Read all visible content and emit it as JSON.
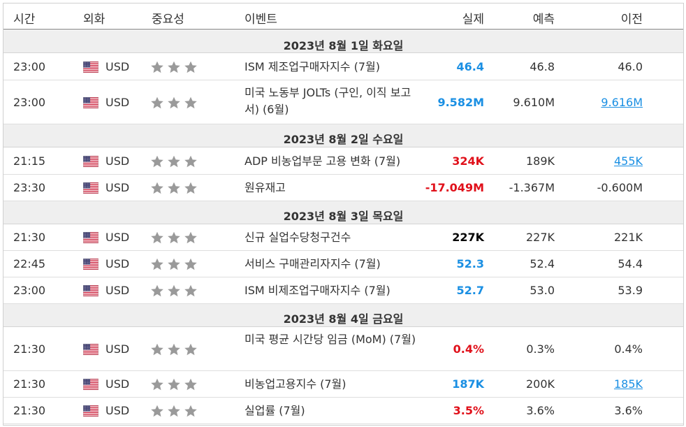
{
  "header": {
    "time": "시간",
    "currency": "외화",
    "importance": "중요성",
    "event": "이벤트",
    "actual": "실제",
    "forecast": "예측",
    "previous": "이전"
  },
  "colors": {
    "positive": "#1a8fe3",
    "negative": "#e0101a",
    "neutral": "#000000",
    "star": "#9a9a9a"
  },
  "icons": {
    "flag": "us-flag-icon",
    "star": "star-icon"
  },
  "days": [
    {
      "date": "2023년 8월 1일 화요일",
      "events": [
        {
          "time": "23:00",
          "currency": "USD",
          "stars": 3,
          "event": "ISM 제조업구매자지수 (7월)",
          "actual": "46.4",
          "actual_color": "blue",
          "forecast": "46.8",
          "previous": "46.0",
          "previous_link": false
        },
        {
          "time": "23:00",
          "currency": "USD",
          "stars": 3,
          "event": "미국 노동부 JOLTs (구인, 이직 보고서) (6월)",
          "actual": "9.582M",
          "actual_color": "blue",
          "forecast": "9.610M",
          "previous": "9.616M",
          "previous_link": true
        }
      ]
    },
    {
      "date": "2023년 8월 2일 수요일",
      "events": [
        {
          "time": "21:15",
          "currency": "USD",
          "stars": 3,
          "event": "ADP 비농업부문 고용 변화 (7월)",
          "actual": "324K",
          "actual_color": "red",
          "forecast": "189K",
          "previous": "455K",
          "previous_link": true
        },
        {
          "time": "23:30",
          "currency": "USD",
          "stars": 3,
          "event": "원유재고",
          "actual": "-17.049M",
          "actual_color": "red",
          "forecast": "-1.367M",
          "previous": "-0.600M",
          "previous_link": false
        }
      ]
    },
    {
      "date": "2023년 8월 3일 목요일",
      "events": [
        {
          "time": "21:30",
          "currency": "USD",
          "stars": 3,
          "event": "신규 실업수당청구건수",
          "actual": "227K",
          "actual_color": "black",
          "forecast": "227K",
          "previous": "221K",
          "previous_link": false
        },
        {
          "time": "22:45",
          "currency": "USD",
          "stars": 3,
          "event": "서비스 구매관리자지수 (7월)",
          "actual": "52.3",
          "actual_color": "blue",
          "forecast": "52.4",
          "previous": "54.4",
          "previous_link": false
        },
        {
          "time": "23:00",
          "currency": "USD",
          "stars": 3,
          "event": "ISM 비제조업구매자지수 (7월)",
          "actual": "52.7",
          "actual_color": "blue",
          "forecast": "53.0",
          "previous": "53.9",
          "previous_link": false
        }
      ]
    },
    {
      "date": "2023년 8월 4일 금요일",
      "events": [
        {
          "time": "21:30",
          "currency": "USD",
          "stars": 3,
          "event": "미국 평균 시간당 임금 (MoM) (7월)",
          "actual": "0.4%",
          "actual_color": "red",
          "forecast": "0.3%",
          "previous": "0.4%",
          "previous_link": false
        },
        {
          "time": "21:30",
          "currency": "USD",
          "stars": 3,
          "event": "비농업고용지수 (7월)",
          "actual": "187K",
          "actual_color": "blue",
          "forecast": "200K",
          "previous": "185K",
          "previous_link": true
        },
        {
          "time": "21:30",
          "currency": "USD",
          "stars": 3,
          "event": "실업률 (7월)",
          "actual": "3.5%",
          "actual_color": "red",
          "forecast": "3.6%",
          "previous": "3.6%",
          "previous_link": false
        }
      ]
    }
  ]
}
